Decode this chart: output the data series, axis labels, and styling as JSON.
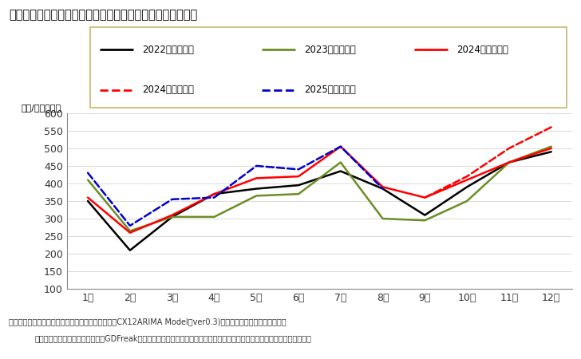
{
  "title": "「二人以上世帯」の１世帯当たり消費支出額の１２ケ月予測",
  "ylabel": "（円/月・世帯）",
  "months": [
    "1月",
    "2月",
    "3月",
    "4月",
    "5月",
    "6月",
    "7月",
    "8月",
    "9月",
    "10月",
    "11月",
    "12月"
  ],
  "series": [
    {
      "label": "2022年（実績）",
      "color": "#000000",
      "linestyle": "solid",
      "linewidth": 1.8,
      "data": [
        350,
        210,
        305,
        370,
        385,
        395,
        435,
        385,
        310,
        390,
        460,
        490
      ]
    },
    {
      "label": "2023年（実績）",
      "color": "#6b8e23",
      "linestyle": "solid",
      "linewidth": 1.8,
      "data": [
        410,
        265,
        305,
        305,
        365,
        370,
        460,
        300,
        295,
        350,
        460,
        505
      ]
    },
    {
      "label": "2024年（実績）",
      "color": "#ff0000",
      "linestyle": "solid",
      "linewidth": 1.8,
      "data": [
        360,
        260,
        310,
        370,
        415,
        420,
        505,
        390,
        360,
        410,
        460,
        500
      ]
    },
    {
      "label": "2024年（予測）",
      "color": "#ff0000",
      "linestyle": "dashed",
      "linewidth": 1.8,
      "data": [
        null,
        null,
        null,
        null,
        null,
        null,
        null,
        null,
        360,
        420,
        500,
        560
      ]
    },
    {
      "label": "2025年（予測）",
      "color": "#0000cd",
      "linestyle": "dashed",
      "linewidth": 1.8,
      "data": [
        430,
        280,
        355,
        360,
        450,
        440,
        505,
        385,
        null,
        null,
        null,
        null
      ]
    }
  ],
  "ylim": [
    100,
    600
  ],
  "yticks": [
    100,
    150,
    200,
    250,
    300,
    350,
    400,
    450,
    500,
    550,
    600
  ],
  "legend_box_color": "#c8b870",
  "source_text1": "出所：家計調査（二人以上世帯）（総務省）を基にCX12ARIMA Model（ver0.3)により各月の曜日構成、月末種",
  "source_text2": "日、うるう年の違いを織り込んでGDFreak予測。なお、東日本大震災後の影響については、モデルにダミー変数を立て対応。"
}
